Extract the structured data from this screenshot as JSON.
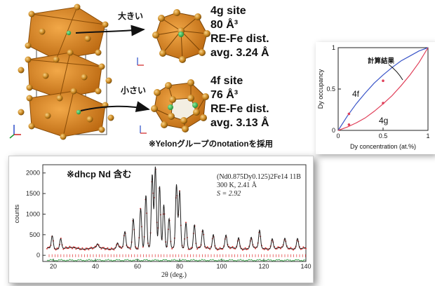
{
  "crystal": {
    "site_large": {
      "tag": "大きい",
      "name": "4g site",
      "volume": "80 Å³",
      "dist_label": "RE-Fe dist.",
      "avg": "avg. 3.24 Å"
    },
    "site_small": {
      "tag": "小さい",
      "name": "4f site",
      "volume": "76 Å³",
      "dist_label": "RE-Fe dist.",
      "avg": "avg. 3.13 Å"
    },
    "note": "※Yelonグループのnotationを採用",
    "colors": {
      "atom_fe": "#d49a2a",
      "polyhedron": "#e08a1e",
      "atom_re": "#2db34a"
    }
  },
  "chart_data": [
    {
      "type": "line",
      "title": "",
      "xlabel": "Dy concentration (at.%)",
      "ylabel": "Dy occupancy",
      "xlim": [
        0,
        1
      ],
      "ylim": [
        0,
        1
      ],
      "xticks": [
        "0",
        "0.5",
        "1"
      ],
      "yticks": [
        "0",
        "0.5",
        "1"
      ],
      "annotation": "計算結果",
      "series": [
        {
          "name": "4f",
          "color": "#3a55c8",
          "x": [
            0,
            0.1,
            0.2,
            0.3,
            0.4,
            0.5,
            0.6,
            0.7,
            0.8,
            0.9,
            1.0
          ],
          "y": [
            0,
            0.17,
            0.32,
            0.45,
            0.57,
            0.67,
            0.76,
            0.84,
            0.9,
            0.96,
            1.0
          ]
        },
        {
          "name": "4g",
          "color": "#e0405a",
          "x": [
            0,
            0.1,
            0.2,
            0.3,
            0.4,
            0.5,
            0.6,
            0.7,
            0.8,
            0.9,
            1.0
          ],
          "y": [
            0,
            0.04,
            0.09,
            0.15,
            0.23,
            0.32,
            0.42,
            0.54,
            0.67,
            0.82,
            1.0
          ]
        },
        {
          "name": "",
          "type": "scatter",
          "color": "#e0405a",
          "x": [
            0.12,
            0.12,
            0.5,
            0.5
          ],
          "y": [
            0.2,
            0.07,
            0.6,
            0.33
          ]
        }
      ]
    },
    {
      "type": "line",
      "title": "",
      "xlabel": "2θ (deg.)",
      "ylabel": "counts",
      "xlim": [
        15,
        140
      ],
      "ylim": [
        -150,
        2200
      ],
      "xticks": [
        "20",
        "40",
        "60",
        "80",
        "100",
        "120",
        "140"
      ],
      "yticks": [
        "0",
        "500",
        "1000",
        "1500",
        "2000"
      ],
      "annotation": "※dhcp Nd 含む",
      "legend_text": [
        "(Nd0.875Dy0.125)2Fe14 11B",
        "300 K, 2.41 Å",
        "S = 2.92"
      ],
      "peaks": [
        {
          "x": 19.5,
          "y": 480
        },
        {
          "x": 23.5,
          "y": 420
        },
        {
          "x": 41,
          "y": 260
        },
        {
          "x": 50.5,
          "y": 300
        },
        {
          "x": 54,
          "y": 560
        },
        {
          "x": 58,
          "y": 900
        },
        {
          "x": 61.5,
          "y": 1150
        },
        {
          "x": 64,
          "y": 1450
        },
        {
          "x": 67,
          "y": 1950
        },
        {
          "x": 68.5,
          "y": 2150
        },
        {
          "x": 70.5,
          "y": 1700
        },
        {
          "x": 72.5,
          "y": 1250
        },
        {
          "x": 75,
          "y": 900
        },
        {
          "x": 78.5,
          "y": 1700
        },
        {
          "x": 80,
          "y": 1550
        },
        {
          "x": 83,
          "y": 800
        },
        {
          "x": 87,
          "y": 750
        },
        {
          "x": 91,
          "y": 600
        },
        {
          "x": 96,
          "y": 520
        },
        {
          "x": 102,
          "y": 480
        },
        {
          "x": 108,
          "y": 440
        },
        {
          "x": 114,
          "y": 430
        },
        {
          "x": 118,
          "y": 600
        },
        {
          "x": 124,
          "y": 420
        },
        {
          "x": 130,
          "y": 400
        },
        {
          "x": 136,
          "y": 430
        }
      ],
      "background": 170,
      "colors": {
        "observed": "#e03030",
        "calculated": "#222222",
        "difference": "#2a9a3a",
        "ticks": "#e03030"
      }
    }
  ]
}
